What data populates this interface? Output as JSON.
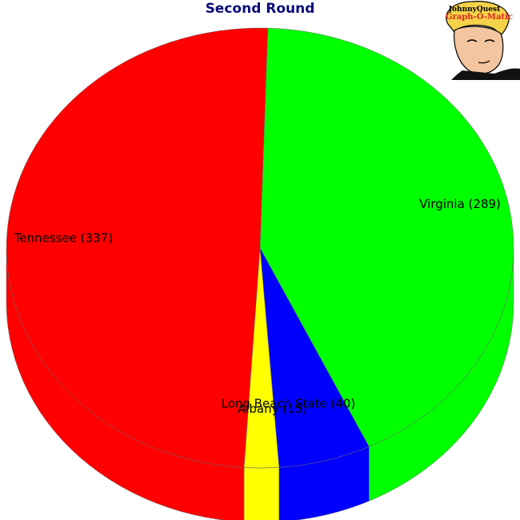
{
  "chart_data": {
    "type": "pie",
    "title": "Second Round",
    "slices": [
      {
        "label": "Virginia",
        "value": 289,
        "color": "#00ff00"
      },
      {
        "label": "Long Beach State",
        "value": 40,
        "color": "#0000ff"
      },
      {
        "label": "Albany",
        "value": 15,
        "color": "#ffff00"
      },
      {
        "label": "Tennessee",
        "value": 337,
        "color": "#ff0000"
      }
    ],
    "three_d": true
  },
  "logo": {
    "line1": "JohnnyQuest",
    "line2": "Graph-O-Matic"
  }
}
